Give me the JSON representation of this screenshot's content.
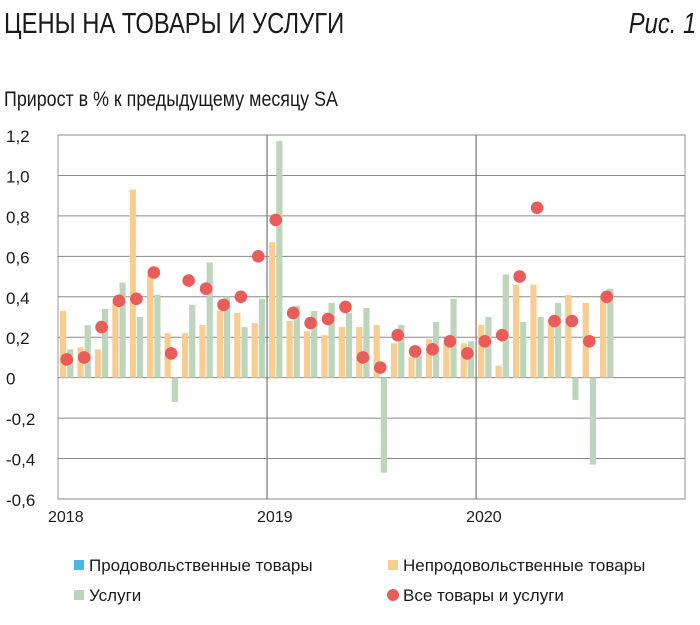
{
  "header": {
    "title": "ЦЕНЫ НА ТОВАРЫ И УСЛУГИ",
    "figure_label": "Рис. 1",
    "subtitle": "Прирост в % к предыдущему месяцу SA"
  },
  "chart_data": {
    "type": "bar",
    "title": "ЦЕНЫ НА ТОВАРЫ И УСЛУГИ",
    "ylabel": "Прирост в % к предыдущему месяцу SA",
    "ylim": [
      -0.6,
      1.2
    ],
    "yticks": [
      "1,2",
      "1,0",
      "0,8",
      "0,6",
      "0,4",
      "0,2",
      "0",
      "-0,2",
      "-0,4",
      "-0,6"
    ],
    "ytick_values": [
      1.2,
      1.0,
      0.8,
      0.6,
      0.4,
      0.2,
      0,
      -0.2,
      -0.4,
      -0.6
    ],
    "xticks": [
      "2018",
      "2019",
      "2020"
    ],
    "x_start": "2018-01",
    "months_total": 36,
    "grid": true,
    "legend_placement": "bottom",
    "series": [
      {
        "name": "Продовольственные товары",
        "kind": "bar",
        "color": "#4db8e8",
        "values": []
      },
      {
        "name": "Непродовольственные товары",
        "kind": "bar",
        "color": "#f9cd8f",
        "values": [
          0.33,
          0.15,
          0.14,
          0.38,
          0.93,
          0.51,
          0.22,
          0.22,
          0.26,
          0.33,
          0.32,
          0.27,
          0.67,
          0.28,
          0.23,
          0.21,
          0.25,
          0.25,
          0.26,
          0.17,
          0.1,
          0.19,
          0.17,
          0.17,
          0.26,
          0.06,
          0.46,
          0.46,
          0.28,
          0.41,
          0.37,
          0.4
        ]
      },
      {
        "name": "Услуги",
        "kind": "bar",
        "color": "#bcd5bb",
        "values": [
          0.14,
          0.26,
          0.34,
          0.47,
          0.3,
          0.41,
          -0.12,
          0.36,
          0.57,
          0.4,
          0.25,
          0.39,
          1.17,
          0.355,
          0.33,
          0.37,
          0.32,
          0.345,
          -0.47,
          0.26,
          0.11,
          0.275,
          0.39,
          0.18,
          0.3,
          0.51,
          0.275,
          0.3,
          0.37,
          -0.11,
          -0.43,
          0.44
        ]
      },
      {
        "name": "Все товары и услуги",
        "kind": "dot",
        "color": "#e85c5a",
        "values": [
          0.09,
          0.1,
          0.25,
          0.38,
          0.39,
          0.52,
          0.12,
          0.48,
          0.44,
          0.36,
          0.4,
          0.6,
          0.78,
          0.32,
          0.27,
          0.29,
          0.35,
          0.1,
          0.05,
          0.21,
          0.13,
          0.14,
          0.18,
          0.12,
          0.18,
          0.21,
          0.5,
          0.84,
          0.28,
          0.28,
          0.18,
          0.4
        ]
      }
    ]
  }
}
